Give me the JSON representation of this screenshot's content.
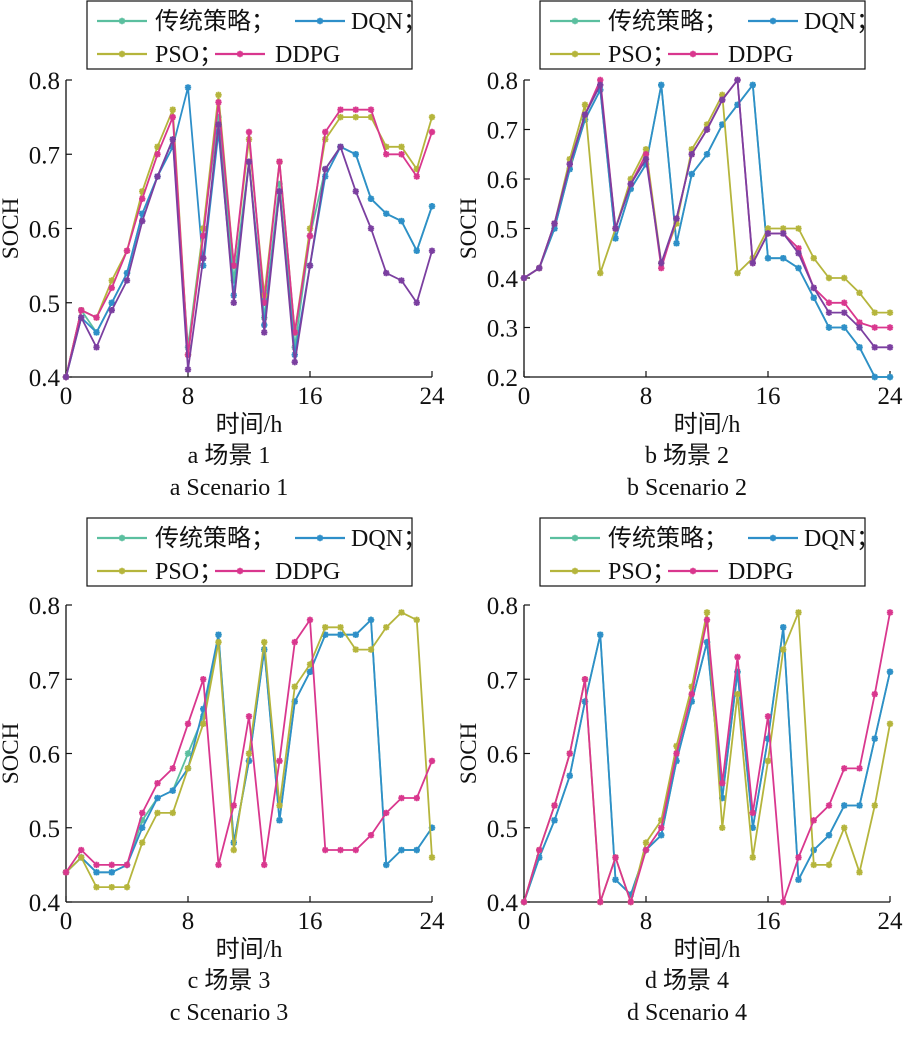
{
  "colors": {
    "traditional": "#5bbf9f",
    "dqn": "#2e8fc9",
    "pso": "#b5b53c",
    "ddpg": "#d9378e",
    "axis": "#111111"
  },
  "legend": {
    "entries": [
      {
        "key": "traditional",
        "label": "传统策略；"
      },
      {
        "key": "dqn",
        "label": "DQN；"
      },
      {
        "key": "pso",
        "label": "PSO；"
      },
      {
        "key": "ddpg",
        "label": "DDPG"
      }
    ]
  },
  "chart_data": [
    {
      "type": "line",
      "xlabel": "时间/h",
      "ylabel": "SOCH",
      "caption_cn": "a 场景 1",
      "caption_en": "a Scenario 1",
      "xlim": [
        0,
        24
      ],
      "ylim": [
        0.4,
        0.8
      ],
      "xticks": [
        0,
        8,
        16,
        24
      ],
      "yticks": [
        0.4,
        0.5,
        0.6,
        0.7,
        0.8
      ],
      "ytick_labels": [
        "0.4",
        "0.5",
        "0.6",
        "0.7",
        "0.8"
      ],
      "x": [
        0,
        1,
        2,
        3,
        4,
        5,
        6,
        7,
        8,
        9,
        10,
        11,
        12,
        13,
        14,
        15,
        16,
        17,
        18,
        19,
        20,
        21,
        22,
        23,
        24
      ],
      "series": [
        {
          "key": "traditional",
          "name": "传统策略",
          "values": [
            0.4,
            0.49,
            0.46,
            0.5,
            0.54,
            0.62,
            0.67,
            0.72,
            0.44,
            0.6,
            0.75,
            0.53,
            0.69,
            0.48,
            0.66,
            0.44,
            0.59,
            0.68,
            0.71,
            0.7,
            0.64,
            0.62,
            0.61,
            0.57,
            0.63
          ]
        },
        {
          "key": "dqn",
          "name": "DQN",
          "values": [
            0.4,
            0.48,
            0.46,
            0.5,
            0.54,
            0.62,
            0.67,
            0.71,
            0.79,
            0.55,
            0.73,
            0.51,
            0.69,
            0.47,
            0.65,
            0.43,
            0.55,
            0.67,
            0.71,
            0.7,
            0.64,
            0.62,
            0.61,
            0.57,
            0.63
          ]
        },
        {
          "key": "pso",
          "name": "PSO",
          "values": [
            0.4,
            0.49,
            0.48,
            0.53,
            0.57,
            0.65,
            0.71,
            0.76,
            0.43,
            0.6,
            0.78,
            0.55,
            0.72,
            0.51,
            0.69,
            0.46,
            0.6,
            0.72,
            0.75,
            0.75,
            0.75,
            0.71,
            0.71,
            0.68,
            0.75
          ]
        },
        {
          "key": "ddpg",
          "name": "DDPG",
          "values": [
            0.4,
            0.49,
            0.48,
            0.52,
            0.57,
            0.64,
            0.7,
            0.75,
            0.43,
            0.59,
            0.77,
            0.55,
            0.73,
            0.5,
            0.69,
            0.46,
            0.59,
            0.73,
            0.76,
            0.76,
            0.76,
            0.7,
            0.7,
            0.67,
            0.73
          ]
        },
        {
          "key": "purple",
          "name": "",
          "color": "#7b3fa0",
          "values": [
            0.4,
            0.48,
            0.44,
            0.49,
            0.53,
            0.61,
            0.67,
            0.72,
            0.41,
            0.56,
            0.74,
            0.5,
            0.69,
            0.46,
            0.65,
            0.42,
            0.55,
            0.68,
            0.71,
            0.65,
            0.6,
            0.54,
            0.53,
            0.5,
            0.57
          ]
        }
      ]
    },
    {
      "type": "line",
      "xlabel": "时间/h",
      "ylabel": "SOCH",
      "caption_cn": "b 场景 2",
      "caption_en": "b Scenario 2",
      "xlim": [
        0,
        24
      ],
      "ylim": [
        0.2,
        0.8
      ],
      "xticks": [
        0,
        8,
        16,
        24
      ],
      "yticks": [
        0.2,
        0.3,
        0.4,
        0.5,
        0.6,
        0.7,
        0.8
      ],
      "ytick_labels": [
        "0.2",
        "0.3",
        "0.4",
        "0.5",
        "0.6",
        "0.7",
        "0.8"
      ],
      "x": [
        0,
        1,
        2,
        3,
        4,
        5,
        6,
        7,
        8,
        9,
        10,
        11,
        12,
        13,
        14,
        15,
        16,
        17,
        18,
        19,
        20,
        21,
        22,
        23,
        24
      ],
      "series": [
        {
          "key": "traditional",
          "name": "传统策略",
          "values": [
            0.4,
            0.42,
            0.5,
            0.62,
            0.72,
            0.78,
            0.48,
            0.58,
            0.63,
            0.79,
            0.47,
            0.61,
            0.65,
            0.71,
            0.75,
            0.79,
            0.44,
            0.44,
            0.42,
            0.36,
            0.3,
            0.3,
            0.26,
            0.2,
            0.2
          ]
        },
        {
          "key": "dqn",
          "name": "DQN",
          "values": [
            0.4,
            0.42,
            0.5,
            0.62,
            0.72,
            0.78,
            0.48,
            0.58,
            0.63,
            0.79,
            0.47,
            0.61,
            0.65,
            0.71,
            0.75,
            0.79,
            0.44,
            0.44,
            0.42,
            0.36,
            0.3,
            0.3,
            0.26,
            0.2,
            0.2
          ]
        },
        {
          "key": "pso",
          "name": "PSO",
          "values": [
            0.4,
            0.42,
            0.51,
            0.64,
            0.75,
            0.41,
            0.5,
            0.6,
            0.66,
            0.43,
            0.51,
            0.66,
            0.71,
            0.77,
            0.41,
            0.44,
            0.5,
            0.5,
            0.5,
            0.44,
            0.4,
            0.4,
            0.37,
            0.33,
            0.33
          ]
        },
        {
          "key": "ddpg",
          "name": "DDPG",
          "values": [
            0.4,
            0.42,
            0.51,
            0.63,
            0.73,
            0.8,
            0.5,
            0.59,
            0.65,
            0.42,
            0.52,
            0.65,
            0.7,
            0.76,
            0.8,
            0.43,
            0.49,
            0.49,
            0.46,
            0.38,
            0.35,
            0.35,
            0.31,
            0.3,
            0.3
          ]
        },
        {
          "key": "purple",
          "name": "",
          "color": "#7b3fa0",
          "values": [
            0.4,
            0.42,
            0.51,
            0.63,
            0.73,
            0.79,
            0.5,
            0.59,
            0.64,
            0.43,
            0.52,
            0.65,
            0.7,
            0.76,
            0.8,
            0.43,
            0.49,
            0.49,
            0.45,
            0.38,
            0.33,
            0.33,
            0.3,
            0.26,
            0.26
          ]
        }
      ]
    },
    {
      "type": "line",
      "xlabel": "时间/h",
      "ylabel": "SOCH",
      "caption_cn": "c 场景 3",
      "caption_en": "c Scenario 3",
      "xlim": [
        0,
        24
      ],
      "ylim": [
        0.4,
        0.8
      ],
      "xticks": [
        0,
        8,
        16,
        24
      ],
      "yticks": [
        0.4,
        0.5,
        0.6,
        0.7,
        0.8
      ],
      "ytick_labels": [
        "0.4",
        "0.5",
        "0.6",
        "0.7",
        "0.8"
      ],
      "x": [
        0,
        1,
        2,
        3,
        4,
        5,
        6,
        7,
        8,
        9,
        10,
        11,
        12,
        13,
        14,
        15,
        16,
        17,
        18,
        19,
        20,
        21,
        22,
        23,
        24
      ],
      "series": [
        {
          "key": "traditional",
          "name": "传统策略",
          "values": [
            0.44,
            0.46,
            0.44,
            0.44,
            0.45,
            0.51,
            0.54,
            0.55,
            0.6,
            0.65,
            0.76,
            0.48,
            0.59,
            0.74,
            0.51,
            0.67,
            0.71,
            0.76,
            0.76,
            0.76,
            0.78,
            0.45,
            0.47,
            0.47,
            0.5
          ]
        },
        {
          "key": "dqn",
          "name": "DQN",
          "values": [
            0.44,
            0.46,
            0.44,
            0.44,
            0.45,
            0.5,
            0.54,
            0.55,
            0.58,
            0.66,
            0.76,
            0.48,
            0.59,
            0.74,
            0.51,
            0.67,
            0.71,
            0.76,
            0.76,
            0.76,
            0.78,
            0.45,
            0.47,
            0.47,
            0.5
          ]
        },
        {
          "key": "pso",
          "name": "PSO",
          "values": [
            0.44,
            0.46,
            0.42,
            0.42,
            0.42,
            0.48,
            0.52,
            0.52,
            0.58,
            0.64,
            0.75,
            0.47,
            0.6,
            0.75,
            0.53,
            0.69,
            0.72,
            0.77,
            0.77,
            0.74,
            0.74,
            0.77,
            0.79,
            0.78,
            0.46
          ]
        },
        {
          "key": "ddpg",
          "name": "DDPG",
          "values": [
            0.44,
            0.47,
            0.45,
            0.45,
            0.45,
            0.52,
            0.56,
            0.58,
            0.64,
            0.7,
            0.45,
            0.53,
            0.65,
            0.45,
            0.59,
            0.75,
            0.78,
            0.47,
            0.47,
            0.47,
            0.49,
            0.52,
            0.54,
            0.54,
            0.59
          ]
        }
      ]
    },
    {
      "type": "line",
      "xlabel": "时间/h",
      "ylabel": "SOCH",
      "caption_cn": "d 场景 4",
      "caption_en": "d Scenario 4",
      "xlim": [
        0,
        24
      ],
      "ylim": [
        0.4,
        0.8
      ],
      "xticks": [
        0,
        8,
        16,
        24
      ],
      "yticks": [
        0.4,
        0.5,
        0.6,
        0.7,
        0.8
      ],
      "ytick_labels": [
        "0.4",
        "0.5",
        "0.6",
        "0.7",
        "0.8"
      ],
      "x": [
        0,
        1,
        2,
        3,
        4,
        5,
        6,
        7,
        8,
        9,
        10,
        11,
        12,
        13,
        14,
        15,
        16,
        17,
        18,
        19,
        20,
        21,
        22,
        23,
        24
      ],
      "series": [
        {
          "key": "traditional",
          "name": "传统策略",
          "values": [
            0.4,
            0.46,
            0.51,
            0.57,
            0.67,
            0.76,
            0.43,
            0.41,
            0.47,
            0.49,
            0.59,
            0.67,
            0.75,
            0.54,
            0.71,
            0.5,
            0.62,
            0.77,
            0.43,
            0.47,
            0.49,
            0.53,
            0.53,
            0.62,
            0.71
          ]
        },
        {
          "key": "dqn",
          "name": "DQN",
          "values": [
            0.4,
            0.46,
            0.51,
            0.57,
            0.67,
            0.76,
            0.43,
            0.41,
            0.47,
            0.49,
            0.59,
            0.67,
            0.75,
            0.54,
            0.71,
            0.5,
            0.62,
            0.77,
            0.43,
            0.47,
            0.49,
            0.53,
            0.53,
            0.62,
            0.71
          ]
        },
        {
          "key": "pso",
          "name": "PSO",
          "values": [
            0.4,
            0.47,
            0.53,
            0.6,
            0.7,
            0.4,
            0.46,
            0.4,
            0.48,
            0.51,
            0.61,
            0.69,
            0.79,
            0.5,
            0.68,
            0.46,
            0.59,
            0.74,
            0.79,
            0.45,
            0.45,
            0.5,
            0.44,
            0.53,
            0.64
          ]
        },
        {
          "key": "ddpg",
          "name": "DDPG",
          "values": [
            0.4,
            0.47,
            0.53,
            0.6,
            0.7,
            0.4,
            0.46,
            0.4,
            0.47,
            0.5,
            0.6,
            0.68,
            0.78,
            0.56,
            0.73,
            0.52,
            0.65,
            0.4,
            0.46,
            0.51,
            0.53,
            0.58,
            0.58,
            0.68,
            0.79
          ]
        }
      ]
    }
  ]
}
